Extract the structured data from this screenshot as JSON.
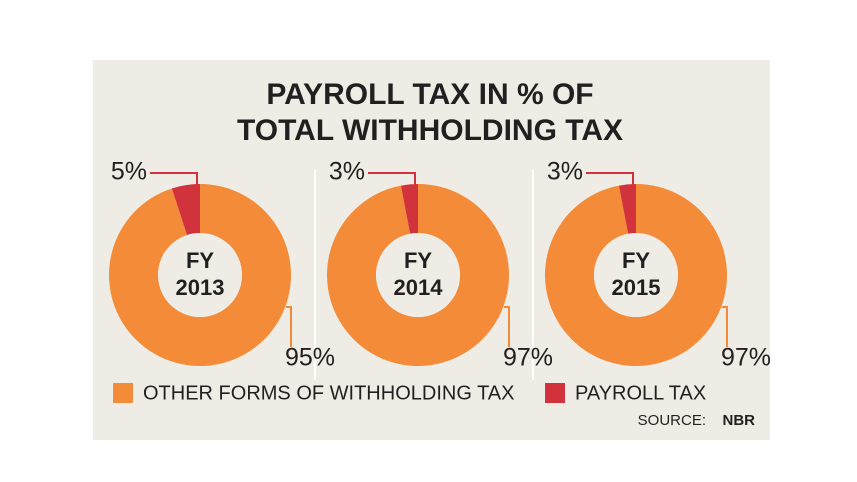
{
  "title": [
    "PAYROLL TAX IN % OF",
    "TOTAL WITHHOLDING TAX"
  ],
  "legend": [
    {
      "name": "OTHER FORMS OF WITHHOLDING TAX",
      "color": "#f38b38"
    },
    {
      "name": "PAYROLL TAX",
      "color": "#d2323c"
    }
  ],
  "chart_data": [
    {
      "type": "pie",
      "label": [
        "FY",
        "2013"
      ],
      "values": [
        95,
        5
      ],
      "value_labels": [
        "95%",
        "5%"
      ]
    },
    {
      "type": "pie",
      "label": [
        "FY",
        "2014"
      ],
      "values": [
        97,
        3
      ],
      "value_labels": [
        "97%",
        "3%"
      ]
    },
    {
      "type": "pie",
      "label": [
        "FY",
        "2015"
      ],
      "values": [
        97,
        3
      ],
      "value_labels": [
        "97%",
        "3%"
      ]
    }
  ],
  "source": {
    "label": "SOURCE:",
    "name": "NBR"
  }
}
